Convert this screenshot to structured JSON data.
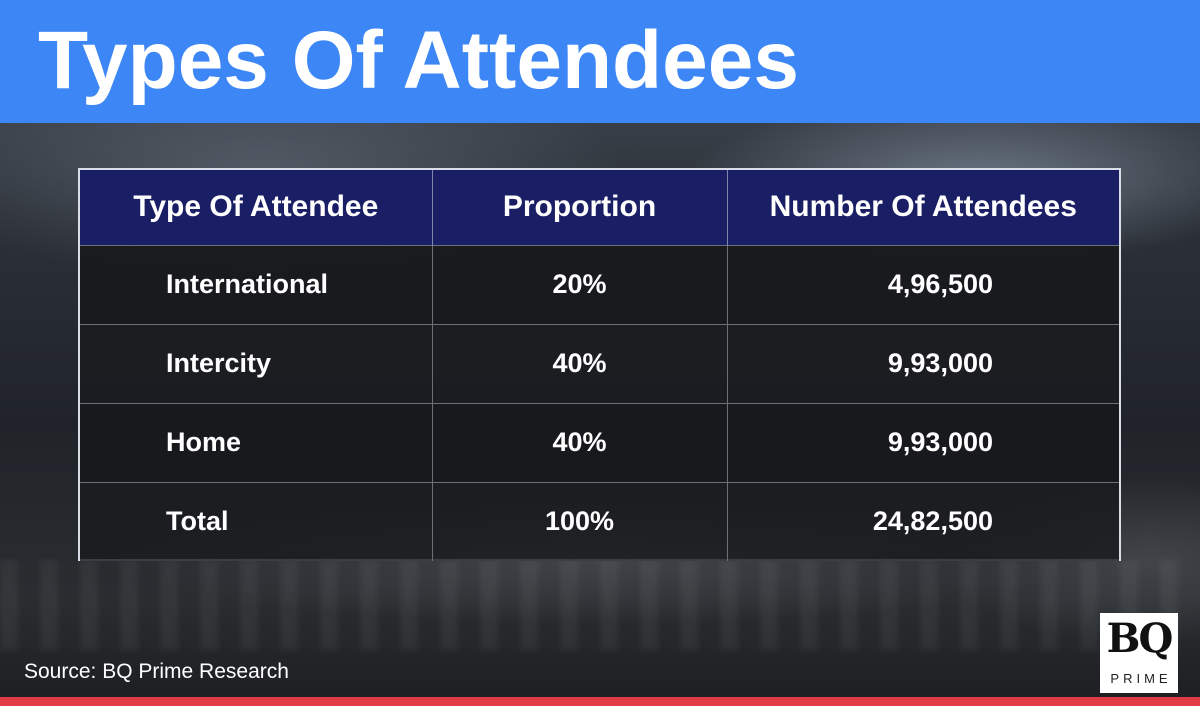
{
  "header": {
    "title": "Types Of Attendees"
  },
  "chart_data": {
    "type": "table",
    "title": "Types Of Attendees",
    "columns": [
      "Type Of Attendee",
      "Proportion",
      "Number Of Attendees"
    ],
    "rows": [
      [
        "International",
        "20%",
        "4,96,500"
      ],
      [
        "Intercity",
        "40%",
        "9,93,000"
      ],
      [
        "Home",
        "40%",
        "9,93,000"
      ],
      [
        "Total",
        "100%",
        "24,82,500"
      ]
    ]
  },
  "footer": {
    "source": "Source: BQ Prime Research",
    "logo_mark": "BQ",
    "logo_sub": "PRIME"
  },
  "colors": {
    "header_bg": "#3d86f6",
    "table_header_bg": "#1a1e64",
    "bottom_bar": "#e23a47"
  }
}
